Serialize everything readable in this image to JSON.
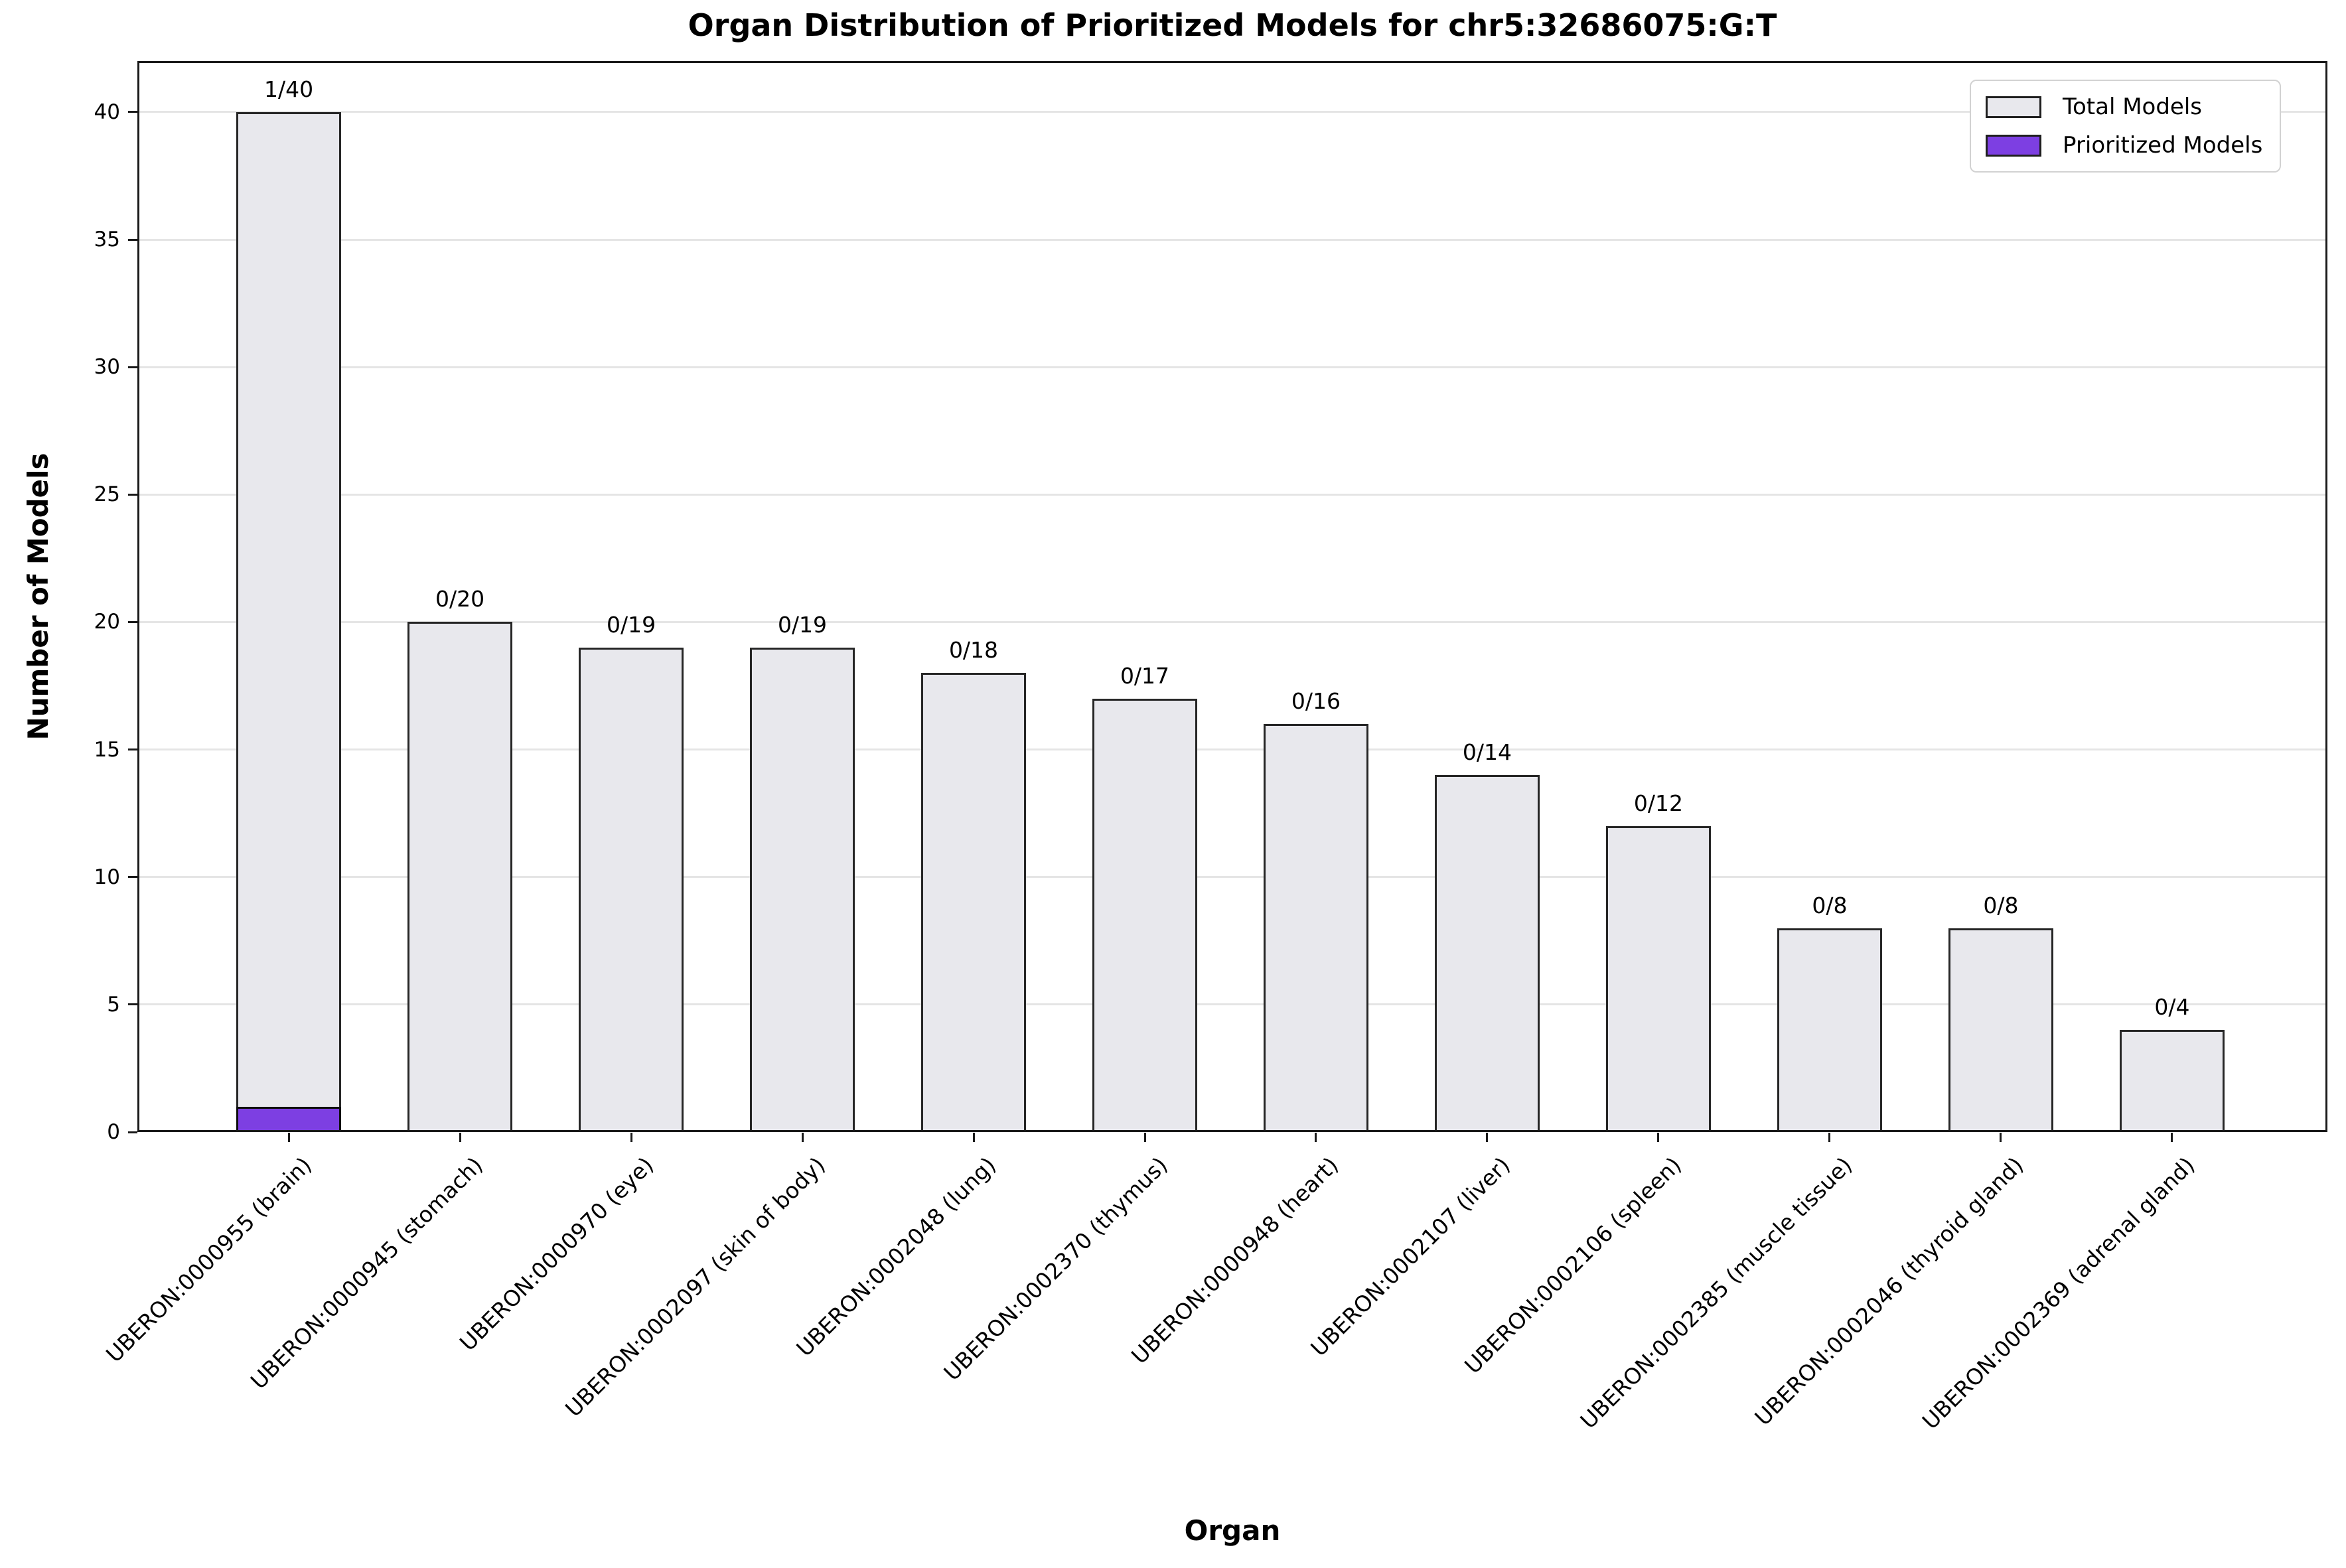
{
  "chart_data": {
    "type": "bar",
    "title": "Organ Distribution of Prioritized Models for chr5:32686075:G:T",
    "xlabel": "Organ",
    "ylabel": "Number of Models",
    "ylim": [
      0,
      42
    ],
    "yticks": [
      0,
      5,
      10,
      15,
      20,
      25,
      30,
      35,
      40
    ],
    "grid": true,
    "legend_position": "upper right",
    "categories": [
      "UBERON:0000955 (brain)",
      "UBERON:0000945 (stomach)",
      "UBERON:0000970 (eye)",
      "UBERON:0002097 (skin of body)",
      "UBERON:0002048 (lung)",
      "UBERON:0002370 (thymus)",
      "UBERON:0000948 (heart)",
      "UBERON:0002107 (liver)",
      "UBERON:0002106 (spleen)",
      "UBERON:0002385 (muscle tissue)",
      "UBERON:0002046 (thyroid gland)",
      "UBERON:0002369 (adrenal gland)"
    ],
    "series": [
      {
        "name": "Total Models",
        "color": "#e8e8ed",
        "edge_color": "#262626",
        "values": [
          40,
          20,
          19,
          19,
          18,
          17,
          16,
          14,
          12,
          8,
          8,
          4
        ]
      },
      {
        "name": "Prioritized Models",
        "color": "#7d3fe2",
        "edge_color": "#0e0e0e",
        "values": [
          1,
          0,
          0,
          0,
          0,
          0,
          0,
          0,
          0,
          0,
          0,
          0
        ]
      }
    ],
    "bar_labels": [
      "1/40",
      "0/20",
      "0/19",
      "0/19",
      "0/18",
      "0/17",
      "0/16",
      "0/14",
      "0/12",
      "0/8",
      "0/8",
      "0/4"
    ]
  },
  "colors": {
    "gridline": "#e5e5e5",
    "spine": "#1a1a1a",
    "text": "#000000",
    "background": "#ffffff"
  }
}
